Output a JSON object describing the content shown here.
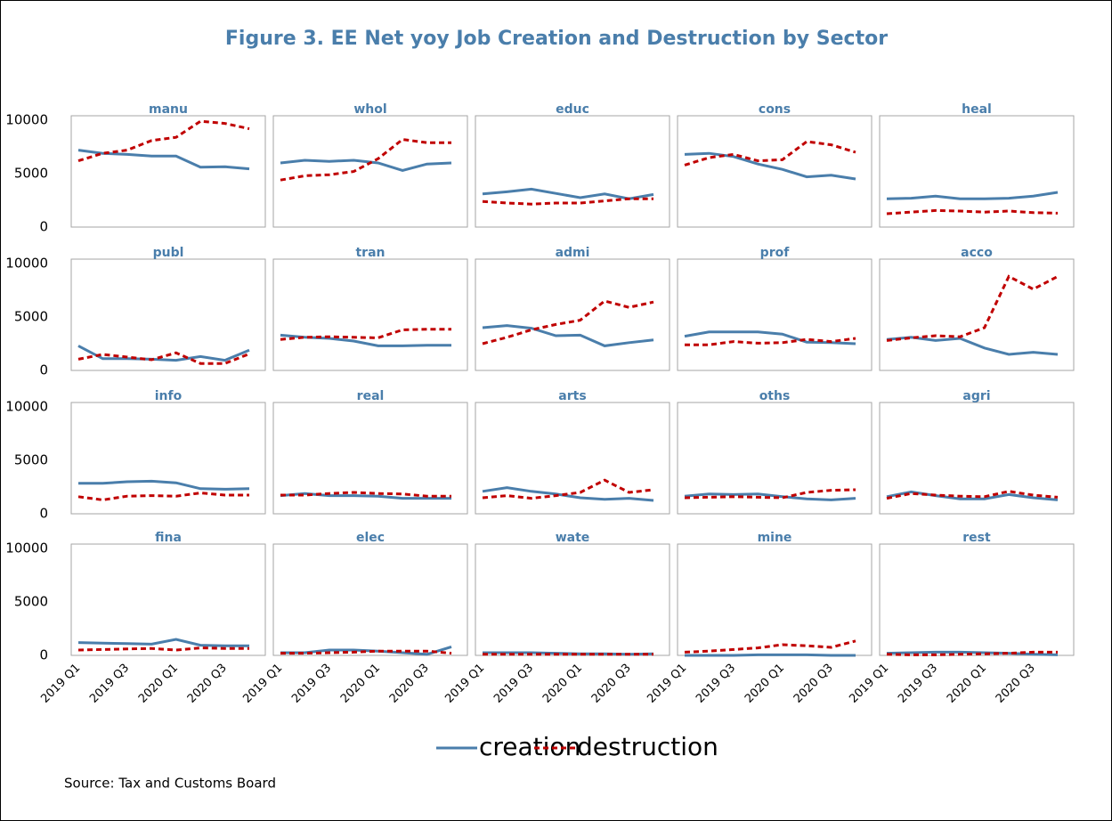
{
  "title": "Figure 3. EE Net yoy Job Creation and Destruction by Sector",
  "source": "Source: Tax and Customs Board",
  "chart_data": [
    {
      "type": "line",
      "title": "manu",
      "ylim": [
        0,
        10000
      ],
      "yticks": [
        0,
        5000,
        10000
      ],
      "series": [
        {
          "name": "creation",
          "color": "#4a7eab",
          "values": [
            7200,
            6900,
            6800,
            6650,
            6650,
            5600,
            5650,
            5450
          ]
        },
        {
          "name": "destruction",
          "color": "#c00000",
          "dash": true,
          "values": [
            6200,
            6900,
            7200,
            8100,
            8400,
            9900,
            9700,
            9200
          ]
        }
      ]
    },
    {
      "type": "line",
      "title": "whol",
      "ylim": [
        0,
        10000
      ],
      "series": [
        {
          "color": "#4a7eab",
          "values": [
            6000,
            6250,
            6150,
            6250,
            6000,
            5300,
            5900,
            6000
          ]
        },
        {
          "color": "#c00000",
          "dash": true,
          "values": [
            4400,
            4800,
            4900,
            5200,
            6400,
            8200,
            7900,
            7900
          ]
        }
      ]
    },
    {
      "type": "line",
      "title": "educ",
      "ylim": [
        0,
        10000
      ],
      "series": [
        {
          "color": "#4a7eab",
          "values": [
            3100,
            3300,
            3550,
            3150,
            2750,
            3100,
            2650,
            3050
          ]
        },
        {
          "color": "#c00000",
          "dash": true,
          "values": [
            2400,
            2250,
            2150,
            2250,
            2250,
            2450,
            2650,
            2650
          ]
        }
      ]
    },
    {
      "type": "line",
      "title": "cons",
      "ylim": [
        0,
        10000
      ],
      "series": [
        {
          "color": "#4a7eab",
          "values": [
            6800,
            6900,
            6600,
            5900,
            5400,
            4700,
            4850,
            4500
          ]
        },
        {
          "color": "#c00000",
          "dash": true,
          "values": [
            5800,
            6500,
            6800,
            6200,
            6300,
            8000,
            7700,
            7000
          ]
        }
      ]
    },
    {
      "type": "line",
      "title": "heal",
      "ylim": [
        0,
        10000
      ],
      "series": [
        {
          "color": "#4a7eab",
          "values": [
            2650,
            2700,
            2900,
            2650,
            2650,
            2700,
            2900,
            3250
          ]
        },
        {
          "color": "#c00000",
          "dash": true,
          "values": [
            1250,
            1400,
            1550,
            1500,
            1400,
            1500,
            1350,
            1300
          ]
        }
      ]
    },
    {
      "type": "line",
      "title": "publ",
      "ylim": [
        0,
        10000
      ],
      "yticks": [
        0,
        5000,
        10000
      ],
      "series": [
        {
          "color": "#4a7eab",
          "values": [
            2300,
            1100,
            1100,
            1050,
            950,
            1300,
            950,
            1900
          ]
        },
        {
          "color": "#c00000",
          "dash": true,
          "values": [
            1050,
            1500,
            1250,
            1000,
            1650,
            650,
            650,
            1550
          ]
        }
      ]
    },
    {
      "type": "line",
      "title": "tran",
      "ylim": [
        0,
        10000
      ],
      "series": [
        {
          "color": "#4a7eab",
          "values": [
            3300,
            3100,
            3000,
            2750,
            2300,
            2300,
            2350,
            2350
          ]
        },
        {
          "color": "#c00000",
          "dash": true,
          "values": [
            2900,
            3100,
            3150,
            3100,
            3050,
            3800,
            3850,
            3850
          ]
        }
      ]
    },
    {
      "type": "line",
      "title": "admi",
      "ylim": [
        0,
        10000
      ],
      "series": [
        {
          "color": "#4a7eab",
          "values": [
            4000,
            4200,
            3950,
            3250,
            3300,
            2300,
            2600,
            2850
          ]
        },
        {
          "color": "#c00000",
          "dash": true,
          "values": [
            2500,
            3100,
            3800,
            4300,
            4700,
            6500,
            5900,
            6400
          ]
        }
      ]
    },
    {
      "type": "line",
      "title": "prof",
      "ylim": [
        0,
        10000
      ],
      "series": [
        {
          "color": "#4a7eab",
          "values": [
            3200,
            3600,
            3600,
            3600,
            3400,
            2650,
            2600,
            2500
          ]
        },
        {
          "color": "#c00000",
          "dash": true,
          "values": [
            2400,
            2400,
            2700,
            2550,
            2600,
            2900,
            2700,
            3000
          ]
        }
      ]
    },
    {
      "type": "line",
      "title": "acco",
      "ylim": [
        0,
        10000
      ],
      "series": [
        {
          "color": "#4a7eab",
          "values": [
            2900,
            3100,
            2800,
            3000,
            2100,
            1500,
            1700,
            1500
          ]
        },
        {
          "color": "#c00000",
          "dash": true,
          "values": [
            2800,
            3050,
            3250,
            3150,
            4000,
            8800,
            7600,
            8800
          ]
        }
      ]
    },
    {
      "type": "line",
      "title": "info",
      "ylim": [
        0,
        10000
      ],
      "yticks": [
        0,
        5000,
        10000
      ],
      "series": [
        {
          "color": "#4a7eab",
          "values": [
            2850,
            2850,
            3000,
            3050,
            2900,
            2350,
            2300,
            2350
          ]
        },
        {
          "color": "#c00000",
          "dash": true,
          "values": [
            1600,
            1300,
            1650,
            1700,
            1650,
            1950,
            1750,
            1750
          ]
        }
      ]
    },
    {
      "type": "line",
      "title": "real",
      "ylim": [
        0,
        10000
      ],
      "series": [
        {
          "color": "#4a7eab",
          "values": [
            1700,
            1900,
            1700,
            1700,
            1650,
            1450,
            1450,
            1450
          ]
        },
        {
          "color": "#c00000",
          "dash": true,
          "values": [
            1750,
            1750,
            1900,
            2000,
            1900,
            1850,
            1650,
            1650
          ]
        }
      ]
    },
    {
      "type": "line",
      "title": "arts",
      "ylim": [
        0,
        10000
      ],
      "series": [
        {
          "color": "#4a7eab",
          "values": [
            2100,
            2450,
            2100,
            1850,
            1500,
            1350,
            1450,
            1250
          ]
        },
        {
          "color": "#c00000",
          "dash": true,
          "values": [
            1500,
            1700,
            1450,
            1700,
            2000,
            3150,
            2000,
            2250
          ]
        }
      ]
    },
    {
      "type": "line",
      "title": "oths",
      "ylim": [
        0,
        10000
      ],
      "series": [
        {
          "color": "#4a7eab",
          "values": [
            1650,
            1850,
            1800,
            1850,
            1600,
            1400,
            1300,
            1450
          ]
        },
        {
          "color": "#c00000",
          "dash": true,
          "values": [
            1500,
            1550,
            1600,
            1550,
            1500,
            2000,
            2200,
            2250
          ]
        }
      ]
    },
    {
      "type": "line",
      "title": "agri",
      "ylim": [
        0,
        10000
      ],
      "series": [
        {
          "color": "#4a7eab",
          "values": [
            1600,
            2050,
            1700,
            1400,
            1400,
            1800,
            1500,
            1300
          ]
        },
        {
          "color": "#c00000",
          "dash": true,
          "values": [
            1450,
            1900,
            1750,
            1650,
            1600,
            2100,
            1750,
            1550
          ]
        }
      ]
    },
    {
      "type": "line",
      "title": "fina",
      "ylim": [
        0,
        10000
      ],
      "yticks": [
        0,
        5000,
        10000
      ],
      "categories": [
        "2019 Q1",
        null,
        "2019 Q3",
        null,
        "2020 Q1",
        null,
        "2020 Q3",
        null
      ],
      "series": [
        {
          "color": "#4a7eab",
          "values": [
            1200,
            1150,
            1100,
            1050,
            1500,
            950,
            900,
            900
          ]
        },
        {
          "color": "#c00000",
          "dash": true,
          "values": [
            500,
            550,
            600,
            650,
            500,
            700,
            650,
            650
          ]
        }
      ]
    },
    {
      "type": "line",
      "title": "elec",
      "ylim": [
        0,
        10000
      ],
      "categories": [
        "2019 Q1",
        null,
        "2019 Q3",
        null,
        "2020 Q1",
        null,
        "2020 Q3",
        null
      ],
      "series": [
        {
          "color": "#4a7eab",
          "values": [
            250,
            250,
            500,
            500,
            400,
            250,
            100,
            800
          ]
        },
        {
          "color": "#c00000",
          "dash": true,
          "values": [
            200,
            200,
            250,
            300,
            400,
            400,
            400,
            200
          ]
        }
      ]
    },
    {
      "type": "line",
      "title": "wate",
      "ylim": [
        0,
        10000
      ],
      "categories": [
        "2019 Q1",
        null,
        "2019 Q3",
        null,
        "2020 Q1",
        null,
        "2020 Q3",
        null
      ],
      "series": [
        {
          "color": "#4a7eab",
          "values": [
            250,
            250,
            250,
            200,
            150,
            150,
            100,
            150
          ]
        },
        {
          "color": "#c00000",
          "dash": true,
          "values": [
            100,
            100,
            100,
            100,
            100,
            100,
            100,
            100
          ]
        }
      ]
    },
    {
      "type": "line",
      "title": "mine",
      "ylim": [
        0,
        10000
      ],
      "categories": [
        "2019 Q1",
        null,
        "2019 Q3",
        null,
        "2020 Q1",
        null,
        "2020 Q3",
        null
      ],
      "series": [
        {
          "color": "#4a7eab",
          "values": [
            0,
            0,
            0,
            50,
            50,
            50,
            0,
            0
          ]
        },
        {
          "color": "#c00000",
          "dash": true,
          "values": [
            300,
            400,
            550,
            700,
            1000,
            900,
            750,
            1350
          ]
        }
      ]
    },
    {
      "type": "line",
      "title": "rest",
      "ylim": [
        0,
        10000
      ],
      "categories": [
        "2019 Q1",
        null,
        "2019 Q3",
        null,
        "2020 Q1",
        null,
        "2020 Q3",
        null
      ],
      "series": [
        {
          "color": "#4a7eab",
          "values": [
            200,
            250,
            300,
            300,
            250,
            200,
            100,
            50
          ]
        },
        {
          "color": "#c00000",
          "dash": true,
          "values": [
            100,
            50,
            50,
            100,
            150,
            200,
            300,
            300
          ]
        }
      ]
    }
  ]
}
